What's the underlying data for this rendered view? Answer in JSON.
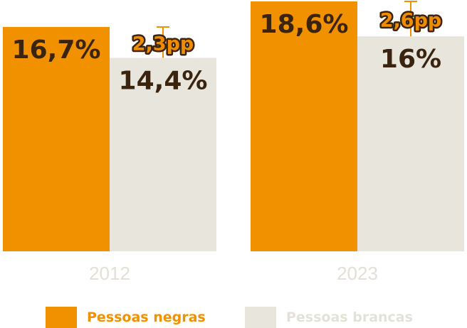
{
  "chart_data": {
    "type": "bar",
    "categories": [
      "2012",
      "2023"
    ],
    "series": [
      {
        "name": "Pessoas negras",
        "values": [
          16.7,
          18.6
        ],
        "labels": [
          "16,7%",
          "18,6%"
        ],
        "color": "#f29100"
      },
      {
        "name": "Pessoas brancas",
        "values": [
          14.4,
          16.0
        ],
        "labels": [
          "14,4%",
          "16%"
        ],
        "color": "#e8e6dc"
      }
    ],
    "differences": [
      "2,3pp",
      "2,6pp"
    ],
    "ylim": [
      0,
      18.6
    ],
    "grid": false,
    "legend": "bottom"
  },
  "legend": {
    "items": [
      {
        "label": "Pessoas negras",
        "color": "#f29100",
        "text_color": "#f29100"
      },
      {
        "label": "Pessoas brancas",
        "color": "#e8e6dc",
        "text_color": "#e4e2d8"
      }
    ]
  }
}
